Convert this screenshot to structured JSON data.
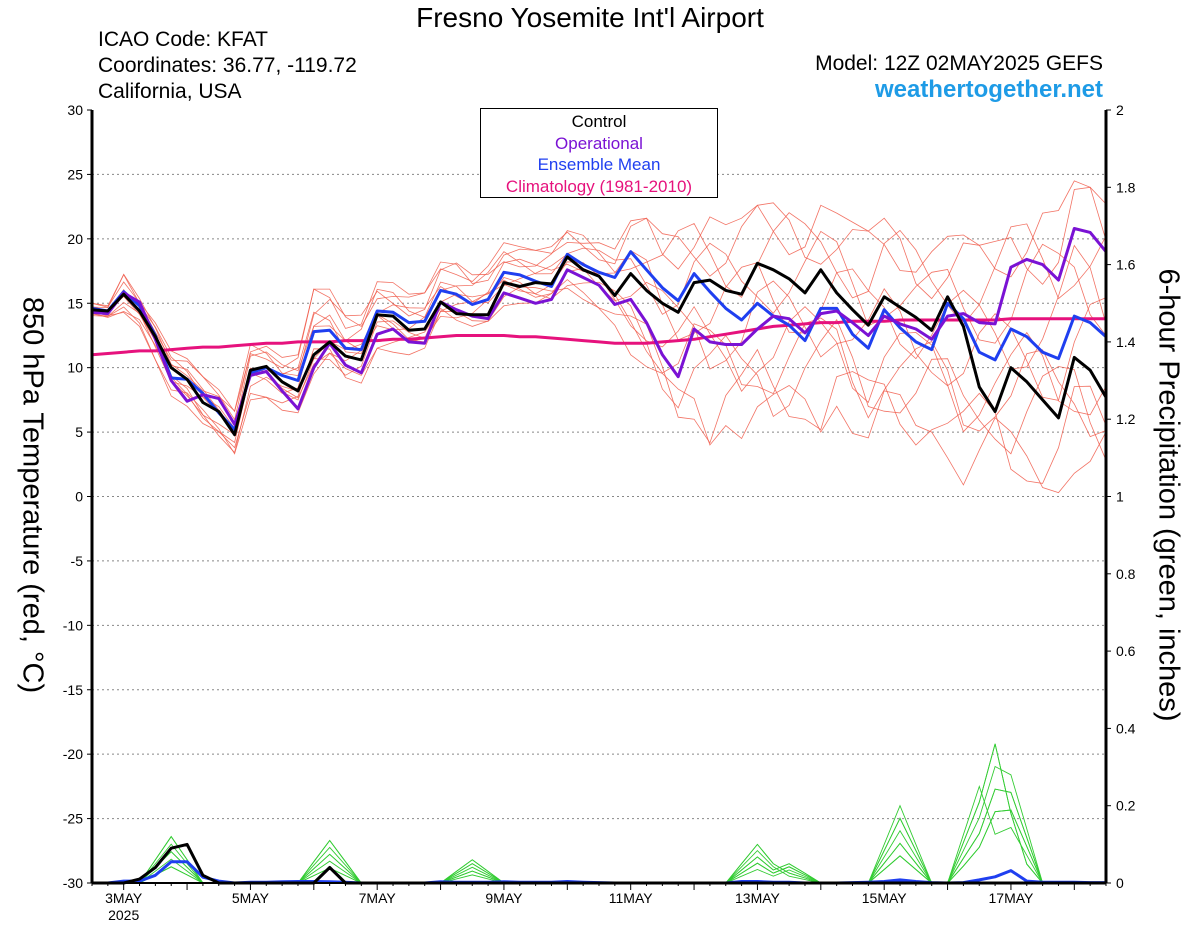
{
  "header": {
    "title": "Fresno Yosemite Int'l Airport",
    "icao": "ICAO Code: KFAT",
    "coordinates": "Coordinates: 36.77, -119.72",
    "region": "California, USA",
    "model": "Model: 12Z 02MAY2025 GEFS",
    "website": "weathertogether.net"
  },
  "legend": {
    "control": "Control",
    "operational": "Operational",
    "ensemble_mean": "Ensemble Mean",
    "climatology": "Climatology (1981-2010)"
  },
  "colors": {
    "control": "#000000",
    "operational": "#7a12d4",
    "ensemble_mean": "#1f3ff0",
    "climatology": "#e6127d",
    "members_temp": "#f05a4a",
    "members_precip": "#33cc33",
    "website": "#1e9be6"
  },
  "chart_data": {
    "type": "line",
    "title": "Fresno Yosemite Int'l Airport",
    "ylabel": "850 hPa Temperature (red, °C)",
    "y2label": "6-hour Precipitation (green, inches)",
    "ylim": [
      -30,
      30
    ],
    "y2lim": [
      0,
      2
    ],
    "yticks": [
      30,
      25,
      20,
      15,
      10,
      5,
      0,
      -5,
      -10,
      -15,
      -20,
      -25,
      -30
    ],
    "y2ticks": [
      "2",
      "1.8",
      "1.6",
      "1.4",
      "1.2",
      "1",
      "0.8",
      "0.6",
      "0.4",
      "0.2",
      "0"
    ],
    "xlim": [
      0,
      64
    ],
    "x_ticks": [
      {
        "x": 2,
        "label": "3MAY",
        "sub": "2025"
      },
      {
        "x": 10,
        "label": "5MAY"
      },
      {
        "x": 18,
        "label": "7MAY"
      },
      {
        "x": 26,
        "label": "9MAY"
      },
      {
        "x": 34,
        "label": "11MAY"
      },
      {
        "x": 42,
        "label": "13MAY"
      },
      {
        "x": 50,
        "label": "15MAY"
      },
      {
        "x": 58,
        "label": "17MAY"
      }
    ],
    "grid": "horizontal dotted",
    "legend_position": "top-center",
    "series": [
      {
        "name": "Control",
        "axis": "temp",
        "values": [
          14.5,
          14.4,
          15.7,
          14.4,
          12.4,
          10.0,
          9.1,
          7.3,
          6.6,
          4.8,
          9.8,
          10.1,
          8.9,
          8.2,
          11.0,
          12.0,
          10.9,
          10.6,
          14.1,
          14.0,
          12.9,
          13.0,
          15.1,
          14.2,
          14.1,
          14.1,
          16.6,
          16.3,
          16.6,
          16.5,
          18.6,
          17.6,
          17.1,
          15.6,
          17.3,
          16.0,
          15.0,
          14.3,
          16.6,
          16.8,
          16.0,
          15.7,
          18.1,
          17.6,
          16.9,
          15.8,
          17.6,
          15.8,
          14.5,
          13.3,
          15.5,
          14.7,
          13.9,
          12.9,
          15.5,
          13.2,
          8.5,
          6.6,
          10.0,
          8.9,
          7.5,
          6.1,
          10.8,
          9.8,
          7.7
        ]
      },
      {
        "name": "Operational",
        "axis": "temp",
        "values": [
          14.3,
          14.2,
          15.8,
          15.1,
          12.2,
          9.0,
          7.4,
          7.9,
          7.6,
          5.6,
          9.4,
          9.7,
          8.2,
          6.8,
          10.0,
          11.9,
          10.2,
          9.6,
          12.6,
          13.0,
          12.0,
          11.9,
          15.1,
          14.5,
          14.0,
          13.8,
          15.8,
          15.4,
          15.0,
          15.3,
          17.6,
          17.0,
          16.4,
          14.9,
          15.3,
          13.5,
          11.0,
          9.3,
          13.0,
          12.0,
          11.8,
          11.8,
          13.0,
          14.0,
          13.8,
          12.7,
          14.2,
          14.4,
          13.5,
          12.5,
          14.0,
          13.4,
          13.0,
          12.2,
          14.0,
          14.2,
          13.5,
          13.4,
          17.8,
          18.4,
          18.0,
          16.8,
          20.8,
          20.5,
          19.0
        ]
      },
      {
        "name": "Ensemble Mean",
        "axis": "temp",
        "values": [
          14.6,
          14.4,
          15.9,
          14.8,
          12.5,
          9.2,
          9.1,
          8.0,
          6.5,
          5.2,
          9.6,
          10.0,
          9.4,
          9.0,
          12.8,
          12.9,
          11.5,
          11.4,
          14.4,
          14.3,
          13.5,
          13.6,
          16.0,
          15.7,
          14.9,
          15.3,
          17.4,
          17.2,
          16.7,
          16.3,
          18.8,
          18.0,
          17.4,
          17.0,
          19.0,
          17.6,
          16.2,
          15.2,
          17.3,
          15.9,
          14.6,
          13.7,
          15.0,
          14.0,
          13.3,
          12.1,
          14.6,
          14.6,
          12.6,
          11.5,
          14.5,
          13.1,
          12.0,
          11.4,
          15.0,
          13.8,
          11.2,
          10.6,
          13.0,
          12.4,
          11.2,
          10.7,
          14.0,
          13.5,
          12.4
        ]
      },
      {
        "name": "Climatology (1981-2010)",
        "axis": "temp",
        "values": [
          11.0,
          11.1,
          11.2,
          11.3,
          11.3,
          11.4,
          11.5,
          11.6,
          11.6,
          11.7,
          11.8,
          11.9,
          11.9,
          12.0,
          12.0,
          12.0,
          12.1,
          12.1,
          12.1,
          12.2,
          12.2,
          12.3,
          12.4,
          12.5,
          12.5,
          12.5,
          12.5,
          12.4,
          12.4,
          12.3,
          12.2,
          12.1,
          12.0,
          11.9,
          11.9,
          11.9,
          12.0,
          12.1,
          12.2,
          12.4,
          12.6,
          12.8,
          13.0,
          13.2,
          13.3,
          13.4,
          13.5,
          13.5,
          13.6,
          13.6,
          13.6,
          13.7,
          13.7,
          13.7,
          13.7,
          13.7,
          13.7,
          13.7,
          13.8,
          13.8,
          13.8,
          13.8,
          13.8,
          13.8,
          13.8
        ]
      },
      {
        "name": "Control precipitation",
        "axis": "precip",
        "values": [
          0,
          0,
          0,
          0.01,
          0.04,
          0.09,
          0.1,
          0.02,
          0,
          0,
          0,
          0,
          0,
          0,
          0,
          0.04,
          0,
          0,
          0,
          0,
          0,
          0,
          0,
          0,
          0,
          0,
          0,
          0,
          0,
          0,
          0,
          0,
          0,
          0,
          0,
          0,
          0,
          0,
          0,
          0,
          0,
          0,
          0,
          0,
          0,
          0,
          0,
          0,
          0,
          0,
          0,
          0,
          0,
          0,
          0,
          0,
          0,
          0,
          0,
          0,
          0,
          0,
          0,
          0,
          0
        ]
      },
      {
        "name": "Ensemble Mean precipitation",
        "axis": "precip",
        "values": [
          0,
          0,
          0.005,
          0.005,
          0.02,
          0.055,
          0.055,
          0.015,
          0.005,
          0,
          0.002,
          0.002,
          0.003,
          0.004,
          0.004,
          0.003,
          0.002,
          0,
          0,
          0,
          0,
          0,
          0.003,
          0.002,
          0.002,
          0.002,
          0.003,
          0.002,
          0.002,
          0.002,
          0.004,
          0.002,
          0.001,
          0,
          0,
          0,
          0,
          0,
          0,
          0,
          0,
          0.004,
          0.004,
          0.002,
          0.002,
          0,
          0,
          0,
          0.001,
          0.002,
          0.004,
          0.008,
          0.004,
          0.001,
          0,
          0.001,
          0.008,
          0.016,
          0.032,
          0.005,
          0.002,
          0.002,
          0.002,
          0.001,
          0.001
        ]
      }
    ],
    "member_temperature_bounds": {
      "lower": [
        14.0,
        13.8,
        14.0,
        13.2,
        10.6,
        7.8,
        7.0,
        5.5,
        4.3,
        3.0,
        7.5,
        7.7,
        6.7,
        6.5,
        9.2,
        10.0,
        8.8,
        8.8,
        11.5,
        11.2,
        11.0,
        11.3,
        13.5,
        13.3,
        13.2,
        13.6,
        14.8,
        15.0,
        14.8,
        14.9,
        15.8,
        15.3,
        14.6,
        13.3,
        11.0,
        9.4,
        7.0,
        5.0,
        6.0,
        4.0,
        5.5,
        4.5,
        6.0,
        4.4,
        5.0,
        6.0,
        5.0,
        7.0,
        4.9,
        3.5,
        5.0,
        4.5,
        4.0,
        5.0,
        3.0,
        0.9,
        2.5,
        2.8,
        0.8,
        1.2,
        0.7,
        0.3,
        1.8,
        1.2,
        0.7
      ],
      "upper": [
        15.0,
        14.8,
        17.3,
        15.4,
        13.5,
        11.3,
        10.7,
        9.3,
        8.3,
        6.7,
        11.9,
        11.7,
        10.8,
        11.0,
        16.1,
        16.1,
        14.1,
        14.2,
        16.7,
        16.6,
        15.7,
        15.8,
        18.2,
        18.2,
        17.3,
        17.9,
        19.7,
        19.4,
        19.1,
        19.4,
        20.7,
        20.4,
        19.7,
        19.2,
        21.4,
        21.6,
        20.4,
        20.8,
        21.6,
        21.7,
        21.1,
        21.6,
        22.6,
        22.8,
        22.2,
        21.6,
        22.6,
        22.0,
        21.3,
        20.6,
        21.6,
        20.8,
        19.6,
        19.0,
        20.2,
        20.3,
        19.5,
        19.8,
        21.1,
        21.8,
        22.0,
        22.2,
        24.5,
        24.0,
        22.7
      ]
    },
    "member_precip_peaks": [
      {
        "x": 5,
        "value": 0.12
      },
      {
        "x": 15,
        "value": 0.11
      },
      {
        "x": 24,
        "value": 0.06
      },
      {
        "x": 42,
        "value": 0.1
      },
      {
        "x": 44,
        "value": 0.05
      },
      {
        "x": 51,
        "value": 0.2
      },
      {
        "x": 56,
        "value": 0.25
      },
      {
        "x": 57,
        "value": 0.36
      },
      {
        "x": 58,
        "value": 0.28
      }
    ]
  }
}
